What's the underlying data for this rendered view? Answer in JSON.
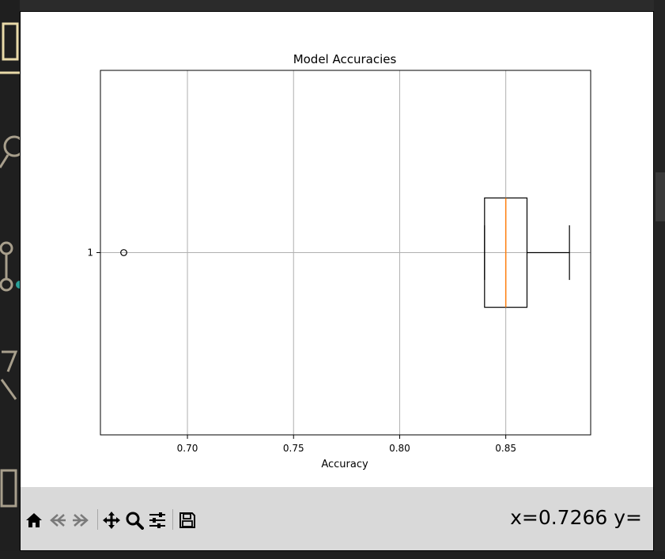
{
  "chart_data": {
    "type": "boxplot",
    "orientation": "horizontal",
    "title": "Model Accuracies",
    "xlabel": "Accuracy",
    "ylabel": "",
    "categories": [
      "1"
    ],
    "xlim": [
      0.659,
      0.89
    ],
    "xticks": [
      0.7,
      0.75,
      0.8,
      0.85
    ],
    "xtick_labels": [
      "0.70",
      "0.75",
      "0.80",
      "0.85"
    ],
    "grid": true,
    "boxes": [
      {
        "label": "1",
        "whisker_low": 0.84,
        "q1": 0.84,
        "median": 0.85,
        "q3": 0.86,
        "whisker_high": 0.88,
        "outliers": [
          0.67
        ]
      }
    ],
    "colors": {
      "median": "#ff7f0e",
      "box": "#000000",
      "grid": "#b0b0b0"
    }
  },
  "toolbar": {
    "buttons": [
      {
        "name": "home-button",
        "icon": "home-icon"
      },
      {
        "name": "back-button",
        "icon": "back-arrow-icon"
      },
      {
        "name": "forward-button",
        "icon": "forward-arrow-icon"
      },
      {
        "name": "pan-button",
        "icon": "move-icon"
      },
      {
        "name": "zoom-button",
        "icon": "magnifier-icon"
      },
      {
        "name": "configure-button",
        "icon": "sliders-icon"
      },
      {
        "name": "save-button",
        "icon": "floppy-icon"
      }
    ],
    "coordinates": "x=0.7266 y="
  }
}
